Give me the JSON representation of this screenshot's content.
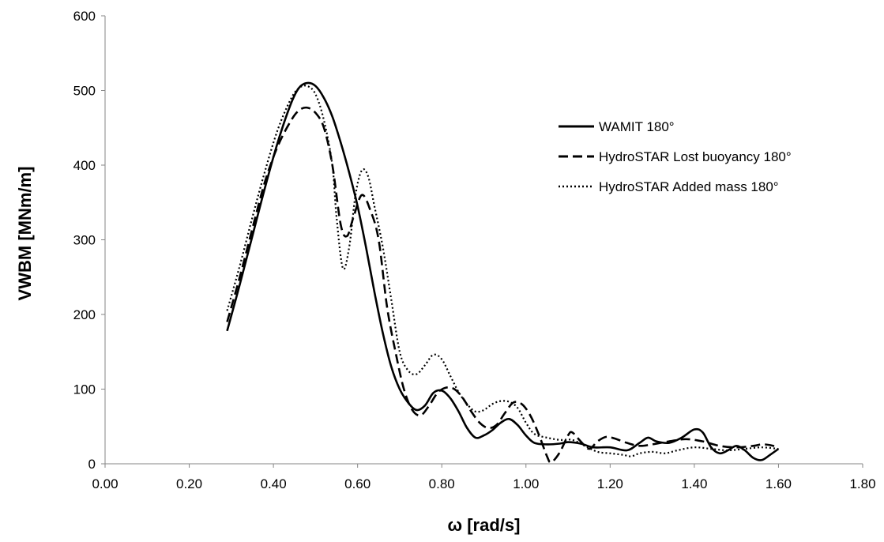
{
  "chart_data": {
    "type": "line",
    "xlabel": "ω [rad/s]",
    "ylabel": "VWBM [MNm/m]",
    "xlim": [
      0,
      1.8
    ],
    "ylim": [
      0,
      600
    ],
    "x_ticks": [
      "0.00",
      "0.20",
      "0.40",
      "0.60",
      "0.80",
      "1.00",
      "1.20",
      "1.40",
      "1.60",
      "1.80"
    ],
    "y_ticks": [
      "0",
      "100",
      "200",
      "300",
      "400",
      "500",
      "600"
    ],
    "grid": false,
    "legend_position": "right",
    "series": [
      {
        "name": "WAMIT 180°",
        "dash": "solid",
        "color": "#000000",
        "points": [
          [
            0.29,
            178
          ],
          [
            0.32,
            240
          ],
          [
            0.35,
            305
          ],
          [
            0.38,
            370
          ],
          [
            0.41,
            430
          ],
          [
            0.44,
            480
          ],
          [
            0.46,
            503
          ],
          [
            0.48,
            510
          ],
          [
            0.5,
            506
          ],
          [
            0.52,
            490
          ],
          [
            0.54,
            465
          ],
          [
            0.56,
            430
          ],
          [
            0.58,
            390
          ],
          [
            0.6,
            345
          ],
          [
            0.62,
            290
          ],
          [
            0.64,
            230
          ],
          [
            0.66,
            175
          ],
          [
            0.68,
            130
          ],
          [
            0.7,
            100
          ],
          [
            0.72,
            82
          ],
          [
            0.74,
            72
          ],
          [
            0.76,
            78
          ],
          [
            0.78,
            95
          ],
          [
            0.8,
            98
          ],
          [
            0.82,
            88
          ],
          [
            0.84,
            70
          ],
          [
            0.86,
            48
          ],
          [
            0.88,
            35
          ],
          [
            0.9,
            38
          ],
          [
            0.92,
            45
          ],
          [
            0.94,
            55
          ],
          [
            0.96,
            60
          ],
          [
            0.98,
            52
          ],
          [
            1.0,
            38
          ],
          [
            1.02,
            28
          ],
          [
            1.05,
            26
          ],
          [
            1.08,
            27
          ],
          [
            1.1,
            29
          ],
          [
            1.13,
            27
          ],
          [
            1.16,
            22
          ],
          [
            1.2,
            22
          ],
          [
            1.24,
            18
          ],
          [
            1.27,
            28
          ],
          [
            1.29,
            35
          ],
          [
            1.31,
            30
          ],
          [
            1.34,
            28
          ],
          [
            1.37,
            35
          ],
          [
            1.4,
            46
          ],
          [
            1.42,
            42
          ],
          [
            1.44,
            22
          ],
          [
            1.46,
            14
          ],
          [
            1.48,
            18
          ],
          [
            1.5,
            24
          ],
          [
            1.52,
            18
          ],
          [
            1.54,
            8
          ],
          [
            1.56,
            5
          ],
          [
            1.58,
            12
          ],
          [
            1.6,
            20
          ]
        ]
      },
      {
        "name": "HydroSTAR  Lost buoyancy 180°",
        "dash": "dashed",
        "color": "#000000",
        "points": [
          [
            0.29,
            190
          ],
          [
            0.32,
            250
          ],
          [
            0.35,
            315
          ],
          [
            0.38,
            378
          ],
          [
            0.41,
            425
          ],
          [
            0.44,
            458
          ],
          [
            0.46,
            473
          ],
          [
            0.48,
            477
          ],
          [
            0.5,
            470
          ],
          [
            0.52,
            450
          ],
          [
            0.54,
            400
          ],
          [
            0.56,
            320
          ],
          [
            0.575,
            305
          ],
          [
            0.59,
            330
          ],
          [
            0.61,
            360
          ],
          [
            0.63,
            340
          ],
          [
            0.65,
            300
          ],
          [
            0.67,
            210
          ],
          [
            0.69,
            150
          ],
          [
            0.71,
            100
          ],
          [
            0.73,
            72
          ],
          [
            0.75,
            65
          ],
          [
            0.77,
            78
          ],
          [
            0.79,
            95
          ],
          [
            0.81,
            102
          ],
          [
            0.83,
            100
          ],
          [
            0.85,
            88
          ],
          [
            0.87,
            70
          ],
          [
            0.89,
            55
          ],
          [
            0.91,
            48
          ],
          [
            0.93,
            52
          ],
          [
            0.95,
            68
          ],
          [
            0.97,
            82
          ],
          [
            0.99,
            80
          ],
          [
            1.01,
            65
          ],
          [
            1.03,
            40
          ],
          [
            1.05,
            10
          ],
          [
            1.06,
            2
          ],
          [
            1.08,
            15
          ],
          [
            1.1,
            38
          ],
          [
            1.11,
            42
          ],
          [
            1.13,
            30
          ],
          [
            1.15,
            20
          ],
          [
            1.17,
            30
          ],
          [
            1.19,
            36
          ],
          [
            1.21,
            34
          ],
          [
            1.24,
            28
          ],
          [
            1.27,
            24
          ],
          [
            1.3,
            26
          ],
          [
            1.34,
            30
          ],
          [
            1.38,
            33
          ],
          [
            1.42,
            30
          ],
          [
            1.46,
            24
          ],
          [
            1.5,
            22
          ],
          [
            1.54,
            24
          ],
          [
            1.56,
            26
          ],
          [
            1.58,
            25
          ],
          [
            1.6,
            22
          ]
        ]
      },
      {
        "name": "HydroSTAR  Added mass 180°",
        "dash": "dotted",
        "color": "#000000",
        "points": [
          [
            0.29,
            205
          ],
          [
            0.32,
            265
          ],
          [
            0.35,
            330
          ],
          [
            0.38,
            392
          ],
          [
            0.41,
            447
          ],
          [
            0.44,
            487
          ],
          [
            0.46,
            503
          ],
          [
            0.48,
            506
          ],
          [
            0.5,
            495
          ],
          [
            0.52,
            460
          ],
          [
            0.54,
            400
          ],
          [
            0.55,
            330
          ],
          [
            0.565,
            262
          ],
          [
            0.58,
            290
          ],
          [
            0.595,
            360
          ],
          [
            0.61,
            393
          ],
          [
            0.625,
            385
          ],
          [
            0.64,
            345
          ],
          [
            0.66,
            290
          ],
          [
            0.68,
            220
          ],
          [
            0.7,
            150
          ],
          [
            0.72,
            125
          ],
          [
            0.74,
            120
          ],
          [
            0.76,
            132
          ],
          [
            0.78,
            146
          ],
          [
            0.8,
            140
          ],
          [
            0.82,
            118
          ],
          [
            0.84,
            96
          ],
          [
            0.86,
            80
          ],
          [
            0.88,
            70
          ],
          [
            0.9,
            72
          ],
          [
            0.92,
            80
          ],
          [
            0.94,
            84
          ],
          [
            0.96,
            83
          ],
          [
            0.98,
            75
          ],
          [
            1.0,
            55
          ],
          [
            1.02,
            40
          ],
          [
            1.05,
            35
          ],
          [
            1.08,
            32
          ],
          [
            1.11,
            32
          ],
          [
            1.14,
            24
          ],
          [
            1.17,
            16
          ],
          [
            1.2,
            14
          ],
          [
            1.23,
            12
          ],
          [
            1.25,
            10
          ],
          [
            1.27,
            14
          ],
          [
            1.3,
            16
          ],
          [
            1.33,
            14
          ],
          [
            1.36,
            18
          ],
          [
            1.4,
            22
          ],
          [
            1.44,
            20
          ],
          [
            1.48,
            18
          ],
          [
            1.52,
            20
          ],
          [
            1.56,
            22
          ],
          [
            1.6,
            20
          ]
        ]
      }
    ]
  }
}
